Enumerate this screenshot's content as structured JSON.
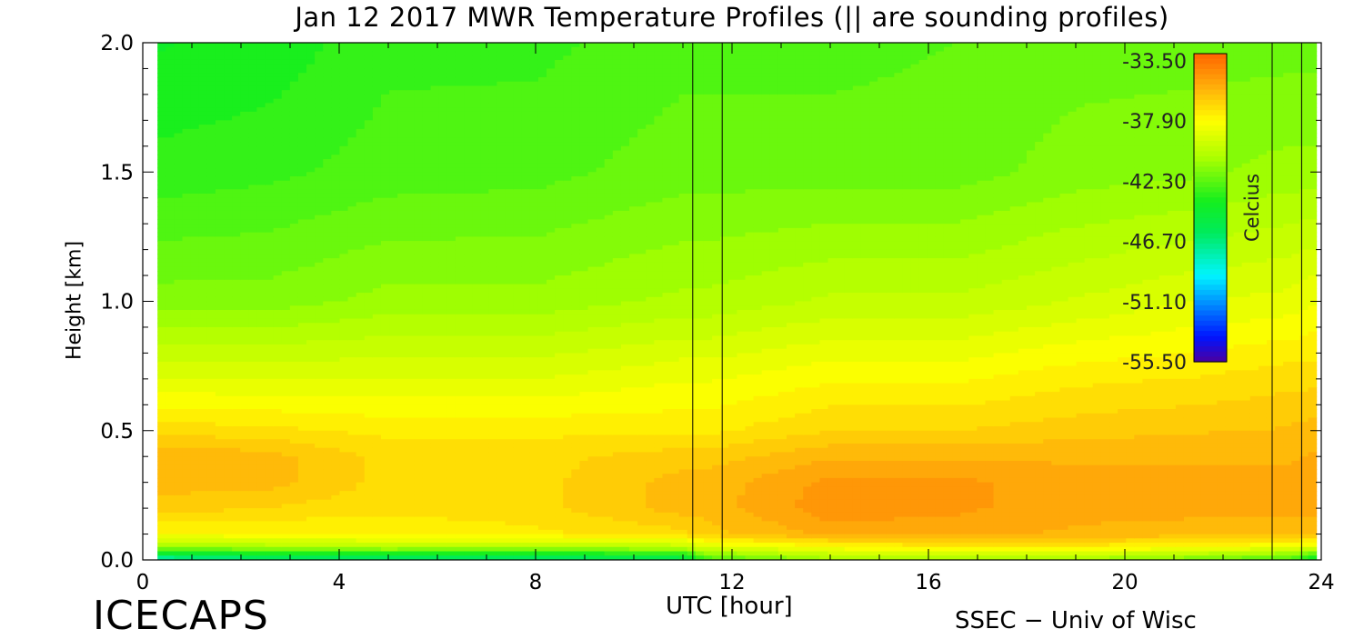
{
  "chart_data": {
    "type": "heatmap",
    "title": "Jan 12 2017 MWR Temperature Profiles (|| are sounding profiles)",
    "xlabel": "UTC [hour]",
    "ylabel": "Height [km]",
    "xlim": [
      0,
      24
    ],
    "ylim": [
      0,
      2
    ],
    "x_ticks": [
      "0",
      "4",
      "8",
      "12",
      "16",
      "20",
      "24"
    ],
    "y_ticks": [
      "0.0",
      "0.5",
      "1.0",
      "1.5",
      "2.0"
    ],
    "colorbar": {
      "label": "Celcius",
      "ticks": [
        "-33.50",
        "-37.90",
        "-42.30",
        "-46.70",
        "-51.10",
        "-55.50"
      ],
      "min": -55.5,
      "max": -33.5
    },
    "sounding_times_utc": [
      11.2,
      11.8,
      23.0,
      23.6
    ],
    "data_start_hour": 0.3,
    "data_end_hour": 23.9,
    "profile_heights_km": [
      0.0,
      0.05,
      0.1,
      0.2,
      0.3,
      0.4,
      0.5,
      0.7,
      1.0,
      1.5,
      2.0
    ],
    "profile_times_utc": [
      0.3,
      2.5,
      5.0,
      8.0,
      11.0,
      11.5,
      14.0,
      16.5,
      19.0,
      21.5,
      23.3,
      23.9
    ],
    "temperatures_c": [
      [
        -48.0,
        -41.0,
        -38.0,
        -36.5,
        -36.0,
        -35.8,
        -37.0,
        -39.0,
        -41.5,
        -43.2,
        -44.0
      ],
      [
        -47.0,
        -40.5,
        -38.0,
        -36.8,
        -36.0,
        -36.0,
        -37.2,
        -39.0,
        -41.5,
        -43.0,
        -43.8
      ],
      [
        -47.0,
        -40.0,
        -37.8,
        -37.2,
        -37.0,
        -37.0,
        -37.5,
        -39.0,
        -41.0,
        -42.6,
        -43.0
      ],
      [
        -47.0,
        -40.5,
        -37.5,
        -37.0,
        -37.0,
        -37.0,
        -37.5,
        -39.0,
        -41.0,
        -42.5,
        -43.0
      ],
      [
        -46.0,
        -40.0,
        -37.0,
        -36.0,
        -36.0,
        -36.5,
        -37.5,
        -38.5,
        -40.5,
        -42.0,
        -42.5
      ],
      [
        -43.0,
        -39.0,
        -36.5,
        -36.0,
        -36.0,
        -36.5,
        -37.5,
        -38.5,
        -40.5,
        -42.0,
        -42.5
      ],
      [
        -41.0,
        -38.0,
        -35.5,
        -34.8,
        -35.0,
        -35.8,
        -36.8,
        -38.0,
        -40.0,
        -42.0,
        -42.5
      ],
      [
        -41.0,
        -37.5,
        -35.5,
        -35.0,
        -35.0,
        -35.8,
        -36.8,
        -38.0,
        -40.0,
        -42.0,
        -42.3
      ],
      [
        -41.0,
        -37.5,
        -35.8,
        -35.5,
        -35.5,
        -35.8,
        -36.5,
        -37.5,
        -39.5,
        -41.5,
        -42.0
      ],
      [
        -42.0,
        -38.0,
        -36.0,
        -35.5,
        -35.5,
        -35.8,
        -36.3,
        -37.3,
        -39.0,
        -41.3,
        -42.0
      ],
      [
        -43.0,
        -38.5,
        -36.0,
        -35.5,
        -35.5,
        -35.8,
        -36.2,
        -37.0,
        -38.8,
        -41.0,
        -42.0
      ],
      [
        -45.0,
        -39.0,
        -36.0,
        -35.5,
        -35.5,
        -35.6,
        -36.0,
        -37.0,
        -38.5,
        -41.0,
        -42.0
      ]
    ]
  }
}
